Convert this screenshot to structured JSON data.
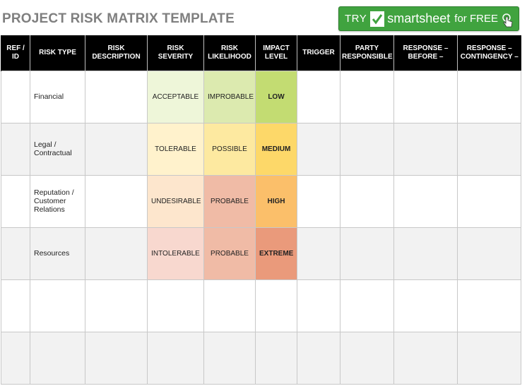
{
  "header": {
    "title": "PROJECT RISK MATRIX TEMPLATE",
    "cta": {
      "try": "TRY",
      "brand": "smartsheet",
      "free": "for FREE"
    }
  },
  "table": {
    "columns": [
      "REF / ID",
      "RISK TYPE",
      "RISK DESCRIPTION",
      "RISK SEVERITY",
      "RISK LIKELIHOOD",
      "IMPACT LEVEL",
      "TRIGGER",
      "PARTY RESPONSIBLE",
      "RESPONSE – BEFORE –",
      "RESPONSE – CONTINGENCY –"
    ],
    "rows": [
      {
        "ref": "",
        "type": "Financial",
        "description": "",
        "severity": "ACCEPTABLE",
        "likelihood": "IMPROBABLE",
        "impact": "LOW",
        "trigger": "",
        "party": "",
        "before": "",
        "contingency": ""
      },
      {
        "ref": "",
        "type": "Legal / Contractual",
        "description": "",
        "severity": "TOLERABLE",
        "likelihood": "POSSIBLE",
        "impact": "MEDIUM",
        "trigger": "",
        "party": "",
        "before": "",
        "contingency": ""
      },
      {
        "ref": "",
        "type": "Reputation / Customer Relations",
        "description": "",
        "severity": "UNDESIRABLE",
        "likelihood": "PROBABLE",
        "impact": "HIGH",
        "trigger": "",
        "party": "",
        "before": "",
        "contingency": ""
      },
      {
        "ref": "",
        "type": "Resources",
        "description": "",
        "severity": "INTOLERABLE",
        "likelihood": "PROBABLE",
        "impact": "EXTREME",
        "trigger": "",
        "party": "",
        "before": "",
        "contingency": ""
      },
      {
        "ref": "",
        "type": "",
        "description": "",
        "severity": "",
        "likelihood": "",
        "impact": "",
        "trigger": "",
        "party": "",
        "before": "",
        "contingency": ""
      },
      {
        "ref": "",
        "type": "",
        "description": "",
        "severity": "",
        "likelihood": "",
        "impact": "",
        "trigger": "",
        "party": "",
        "before": "",
        "contingency": ""
      }
    ]
  },
  "colors": {
    "severity": [
      "#eef6d9",
      "#fff2cc",
      "#fde6cd",
      "#f8d8cf"
    ],
    "likelihood": [
      "#dceaaf",
      "#fde9a0",
      "#f0bba6",
      "#f0bba6"
    ],
    "impact": [
      "#c3dc72",
      "#fdd869",
      "#fbbf6a",
      "#ea9a7b"
    ],
    "cta_background": "#40a33f"
  }
}
